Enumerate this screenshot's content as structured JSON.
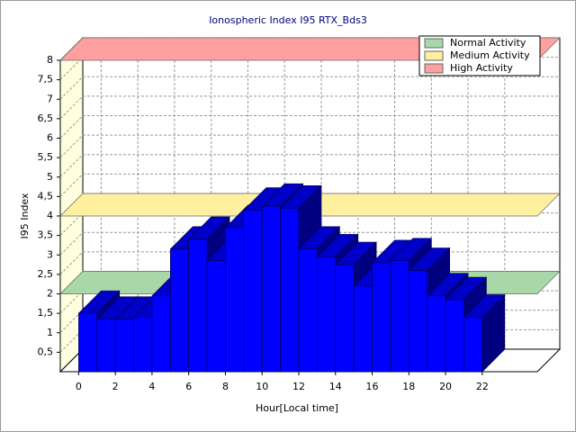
{
  "chart_data": {
    "type": "bar",
    "title": "Ionospheric Index I95 RTX_Bds3",
    "x_label": "Hour[Local time]",
    "y_label": "I95 Index",
    "x": [
      0,
      1,
      2,
      3,
      4,
      5,
      6,
      7,
      8,
      9,
      10,
      11,
      12,
      13,
      14,
      15,
      16,
      17,
      18,
      19,
      20,
      21
    ],
    "values": [
      1.5,
      1.35,
      1.35,
      1.4,
      1.95,
      3.15,
      3.4,
      2.85,
      3.7,
      4.15,
      4.25,
      4.2,
      3.15,
      2.95,
      2.75,
      2.2,
      2.8,
      2.85,
      2.6,
      1.95,
      1.85,
      1.4
    ],
    "color": "#0000ff",
    "xlim": [
      -1,
      25
    ],
    "xticks": [
      0,
      2,
      4,
      6,
      8,
      10,
      12,
      14,
      16,
      18,
      20,
      22
    ],
    "ylim": [
      0,
      8
    ],
    "yticks": [
      {
        "value": 0.5,
        "label": "0,5"
      },
      1,
      {
        "value": 1.5,
        "label": "1,5"
      },
      2,
      {
        "value": 2.5,
        "label": "2,5"
      },
      3,
      {
        "value": 3.5,
        "label": "3,5"
      },
      4,
      {
        "value": 4.5,
        "label": "4,5"
      },
      5,
      {
        "value": 5.5,
        "label": "5,5"
      },
      6,
      {
        "value": 6.5,
        "label": "6,5"
      },
      7,
      {
        "value": 7.5,
        "label": "7,5"
      },
      8
    ],
    "grid": true,
    "legend": "top-right",
    "bands": [
      {
        "name": "Normal Activity",
        "value": 2,
        "color": "#a8d8a8"
      },
      {
        "name": "Medium Activity",
        "value": 4,
        "color": "#fff0a0"
      },
      {
        "name": "High Activity",
        "value": 8,
        "color": "#ffa0a0"
      }
    ]
  }
}
